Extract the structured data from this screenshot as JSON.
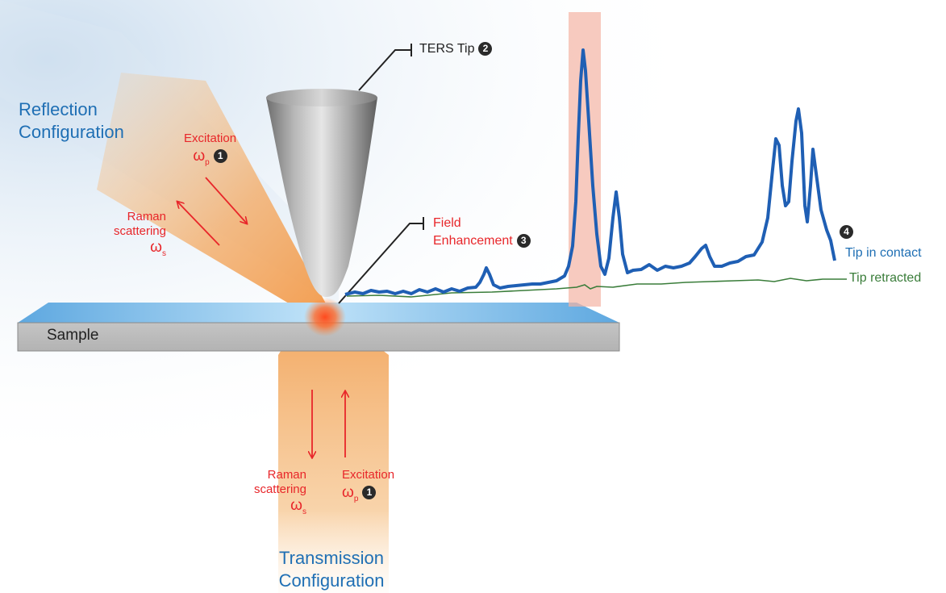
{
  "reflection": {
    "line1": "Reflection",
    "line2": "Configuration"
  },
  "transmission": {
    "line1": "Transmission",
    "line2": "Configuration"
  },
  "tip": {
    "label": "TERS Tip",
    "badge": "2"
  },
  "field": {
    "line1": "Field",
    "line2": "Enhancement",
    "badge": "3"
  },
  "sample": {
    "label": "Sample"
  },
  "excitation_top": {
    "label": "Excitation",
    "symbol": "ω",
    "sub": "p",
    "badge": "1"
  },
  "raman_top": {
    "line1": "Raman",
    "line2": "scattering",
    "symbol": "ω",
    "sub": "s"
  },
  "raman_bottom": {
    "line1": "Raman",
    "line2": "scattering",
    "symbol": "ω",
    "sub": "s"
  },
  "excitation_bottom": {
    "label": "Excitation",
    "symbol": "ω",
    "sub": "p",
    "badge": "1"
  },
  "spectrum": {
    "badge": "4",
    "contact_label": "Tip in contact",
    "retracted_label": "Tip retracted",
    "colors": {
      "contact": "#1f5fb4",
      "retracted": "#3a7d3a",
      "highlight": "#f4b3a4"
    }
  }
}
